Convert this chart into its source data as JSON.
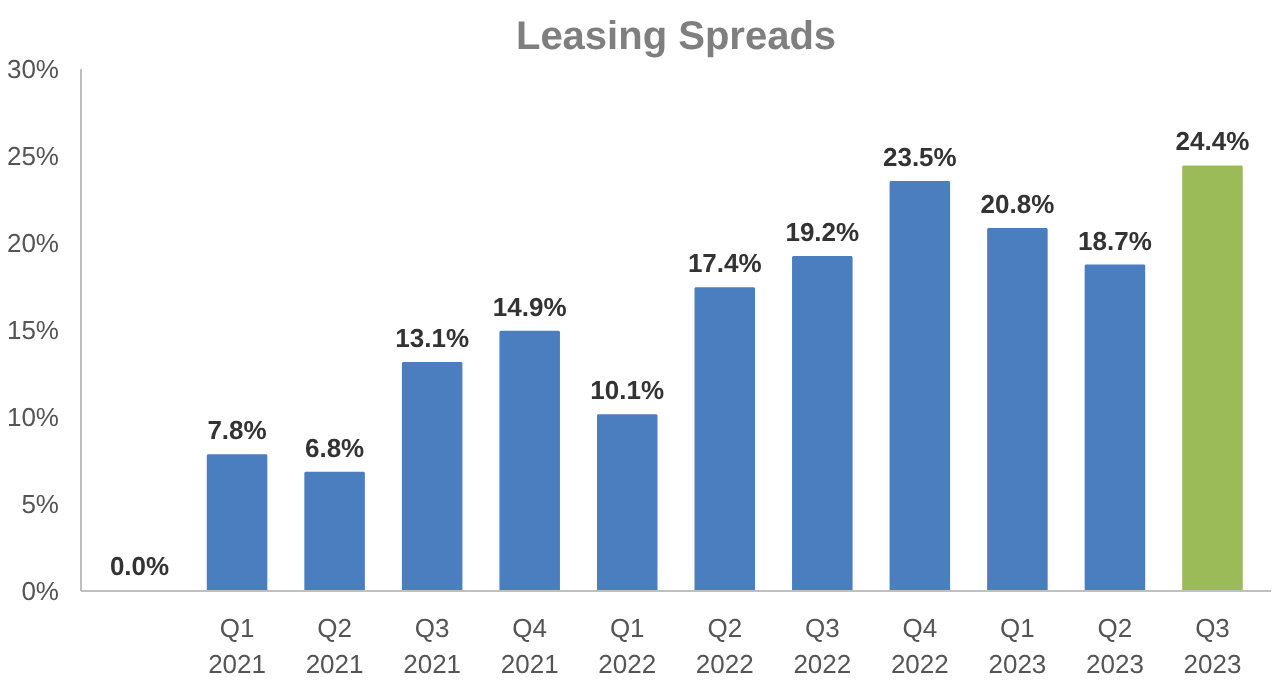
{
  "chart_data": {
    "type": "bar",
    "title": "Leasing Spreads",
    "categories": [
      null,
      "Q1\n2021",
      "Q2\n2021",
      "Q3\n2021",
      "Q4\n2021",
      "Q1\n2022",
      "Q2\n2022",
      "Q3\n2022",
      "Q4\n2022",
      "Q1\n2023",
      "Q2\n2023",
      "Q3\n2023"
    ],
    "values": [
      0.0,
      7.8,
      6.8,
      13.1,
      14.9,
      10.1,
      17.4,
      19.2,
      23.5,
      20.8,
      18.7,
      24.4
    ],
    "colors": [
      "#4a7ebf",
      "#4a7ebf",
      "#4a7ebf",
      "#4a7ebf",
      "#4a7ebf",
      "#4a7ebf",
      "#4a7ebf",
      "#4a7ebf",
      "#4a7ebf",
      "#4a7ebf",
      "#4a7ebf",
      "#9bbb59"
    ],
    "value_labels": [
      "0.0%",
      "7.8%",
      "6.8%",
      "13.1%",
      "14.9%",
      "10.1%",
      "17.4%",
      "19.2%",
      "23.5%",
      "20.8%",
      "18.7%",
      "24.4%"
    ],
    "ylim": [
      0,
      30
    ],
    "yticks": [
      {
        "value": 0,
        "label": "0%"
      },
      {
        "value": 5,
        "label": "5%"
      },
      {
        "value": 10,
        "label": "10%"
      },
      {
        "value": 15,
        "label": "15%"
      },
      {
        "value": 20,
        "label": "20%"
      },
      {
        "value": 25,
        "label": "25%"
      },
      {
        "value": 30,
        "label": "30%"
      }
    ],
    "grid": false
  }
}
